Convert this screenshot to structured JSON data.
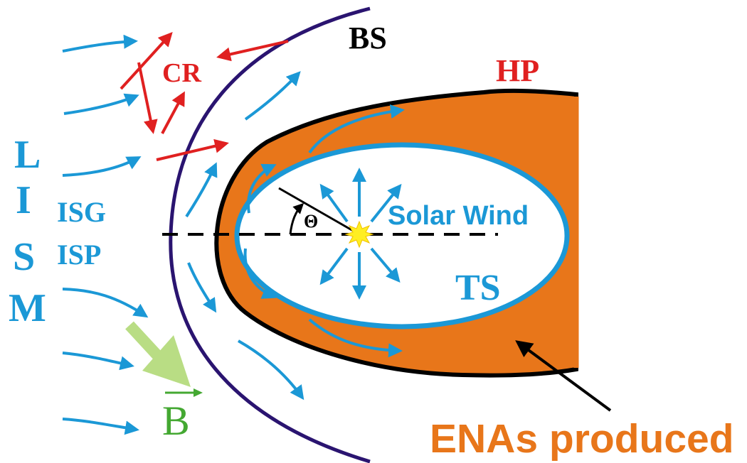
{
  "labels": {
    "bow_shock": "BS",
    "heliopause": "HP",
    "cosmic_rays": "CR",
    "lism_letters": [
      "L",
      "I",
      "S",
      "M"
    ],
    "isg": "ISG",
    "isp": "ISP",
    "solar_wind": "Solar Wind",
    "termination_shock": "TS",
    "angle": "Θ",
    "magnetic_field": "B",
    "enas": "ENAs produced"
  },
  "colors": {
    "flow_blue": "#1b98d6",
    "cosmic_red": "#e02020",
    "heliosheath_orange": "#e8761a",
    "bow_shock_navy": "#2a1470",
    "field_green_light": "#b9dd84",
    "field_green": "#44a832",
    "sun_yellow": "#ffee22",
    "outline_black": "#000000"
  }
}
